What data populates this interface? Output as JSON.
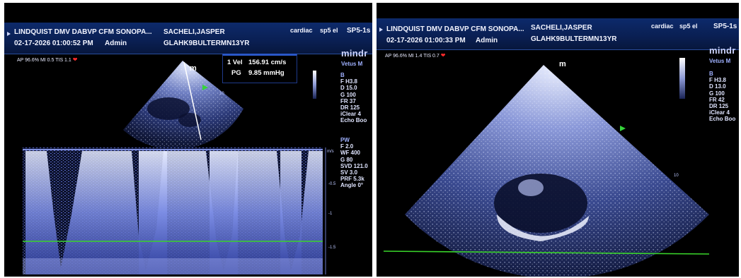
{
  "left": {
    "clinic": "LINDQUIST DMV DABVP CFM SONOPA...",
    "patient_name": "SACHELI,JASPER",
    "patient_id": "GLAHK9BULTERMN13YR",
    "exam": "cardiac",
    "probe": "sp5 el",
    "probe_code": "SP5-1s",
    "datetime": "02-17-2026  01:00:52 PM",
    "operator": "Admin",
    "output": "AP 96.6%  MI 0.5  TIS 1.1",
    "brand": "mindr",
    "model": "Vetus M",
    "bmode_label": "B",
    "bmode_params": [
      "F H3.8",
      "D 15.0",
      "G 100",
      "FR 37",
      "DR 125",
      "iClear 4",
      "Echo Boo"
    ],
    "pw_label": "PW",
    "pw_params": [
      "F 2.0",
      "WF 400",
      "G 80",
      "SVD 121.0",
      "SV 3.0",
      "PRF 5.3k",
      "Angle 0°"
    ],
    "measurement": {
      "vel_label": "1 Vel",
      "vel_value": "156.91 cm/s",
      "pg_label": "PG",
      "pg_value": "9.85 mmHg"
    },
    "scale_unit": "m/s",
    "scale_ticks": [
      "-0.5",
      "-1",
      "-1.5"
    ],
    "sector_marker": "m",
    "depth_tick": "10"
  },
  "right": {
    "clinic": "LINDQUIST DMV DABVP CFM SONOPA...",
    "patient_name": "SACHELI,JASPER",
    "patient_id": "GLAHK9BULTERMN13YR",
    "exam": "cardiac",
    "probe": "sp5 el",
    "probe_code": "SP5-1s",
    "datetime": "02-17-2026  01:00:33 PM",
    "operator": "Admin",
    "output": "AP 96.6%  MI 1.4  TIS 0.7",
    "brand": "mindr",
    "model": "Vetus M",
    "bmode_label": "B",
    "bmode_params": [
      "F H3.8",
      "D 13.0",
      "G 100",
      "FR 42",
      "DR 125",
      "iClear 4",
      "Echo Boo"
    ],
    "sector_marker": "m",
    "depth_tick": "10"
  },
  "colors": {
    "header": "#0a1f52",
    "ecg_line": "#39d42a",
    "doppler": "#9aa9ff",
    "marker_green": "#35d43a"
  }
}
